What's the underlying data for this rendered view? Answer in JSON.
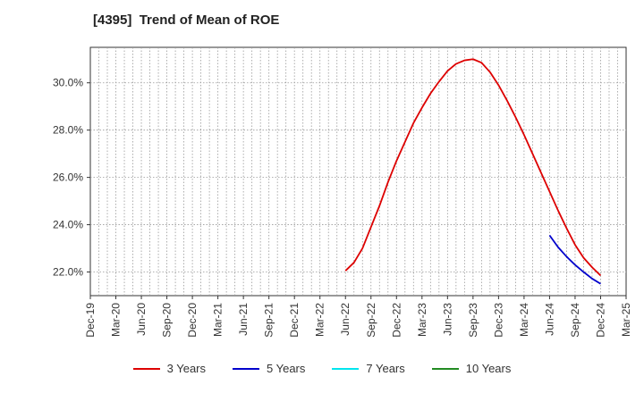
{
  "chart_data": {
    "type": "line",
    "title": "[4395]  Trend of Mean of ROE",
    "x_ticks": [
      "Dec-19",
      "Mar-20",
      "Jun-20",
      "Sep-20",
      "Dec-20",
      "Mar-21",
      "Jun-21",
      "Sep-21",
      "Dec-21",
      "Mar-22",
      "Jun-22",
      "Sep-22",
      "Dec-22",
      "Mar-23",
      "Jun-23",
      "Sep-23",
      "Dec-23",
      "Mar-24",
      "Jun-24",
      "Sep-24",
      "Dec-24",
      "Mar-25"
    ],
    "y_ticks": [
      "22.0%",
      "24.0%",
      "26.0%",
      "28.0%",
      "30.0%"
    ],
    "y_tick_values": [
      22,
      24,
      26,
      28,
      30
    ],
    "ylim": [
      21.0,
      31.5
    ],
    "grid": true,
    "legend_position": "bottom",
    "series": [
      {
        "name": "3 Years",
        "color": "#dd0000",
        "points": [
          [
            "Jun-22",
            22.05
          ],
          [
            "Jul-22",
            22.4
          ],
          [
            "Aug-22",
            23.0
          ],
          [
            "Sep-22",
            23.9
          ],
          [
            "Oct-22",
            24.8
          ],
          [
            "Nov-22",
            25.8
          ],
          [
            "Dec-22",
            26.7
          ],
          [
            "Jan-23",
            27.5
          ],
          [
            "Feb-23",
            28.3
          ],
          [
            "Mar-23",
            28.95
          ],
          [
            "Apr-23",
            29.55
          ],
          [
            "May-23",
            30.05
          ],
          [
            "Jun-23",
            30.5
          ],
          [
            "Jul-23",
            30.8
          ],
          [
            "Aug-23",
            30.95
          ],
          [
            "Sep-23",
            31.0
          ],
          [
            "Oct-23",
            30.85
          ],
          [
            "Nov-23",
            30.45
          ],
          [
            "Dec-23",
            29.9
          ],
          [
            "Jan-24",
            29.25
          ],
          [
            "Feb-24",
            28.55
          ],
          [
            "Mar-24",
            27.8
          ],
          [
            "Apr-24",
            27.0
          ],
          [
            "May-24",
            26.2
          ],
          [
            "Jun-24",
            25.4
          ],
          [
            "Jul-24",
            24.6
          ],
          [
            "Aug-24",
            23.85
          ],
          [
            "Sep-24",
            23.15
          ],
          [
            "Oct-24",
            22.6
          ],
          [
            "Nov-24",
            22.2
          ],
          [
            "Dec-24",
            21.85
          ]
        ]
      },
      {
        "name": "5 Years",
        "color": "#0000cc",
        "points": [
          [
            "Jun-24",
            23.55
          ],
          [
            "Jul-24",
            23.05
          ],
          [
            "Aug-24",
            22.65
          ],
          [
            "Sep-24",
            22.3
          ],
          [
            "Oct-24",
            22.0
          ],
          [
            "Nov-24",
            21.72
          ],
          [
            "Dec-24",
            21.5
          ]
        ]
      },
      {
        "name": "7 Years",
        "color": "#00e5ee",
        "points": []
      },
      {
        "name": "10 Years",
        "color": "#228b22",
        "points": []
      }
    ]
  }
}
